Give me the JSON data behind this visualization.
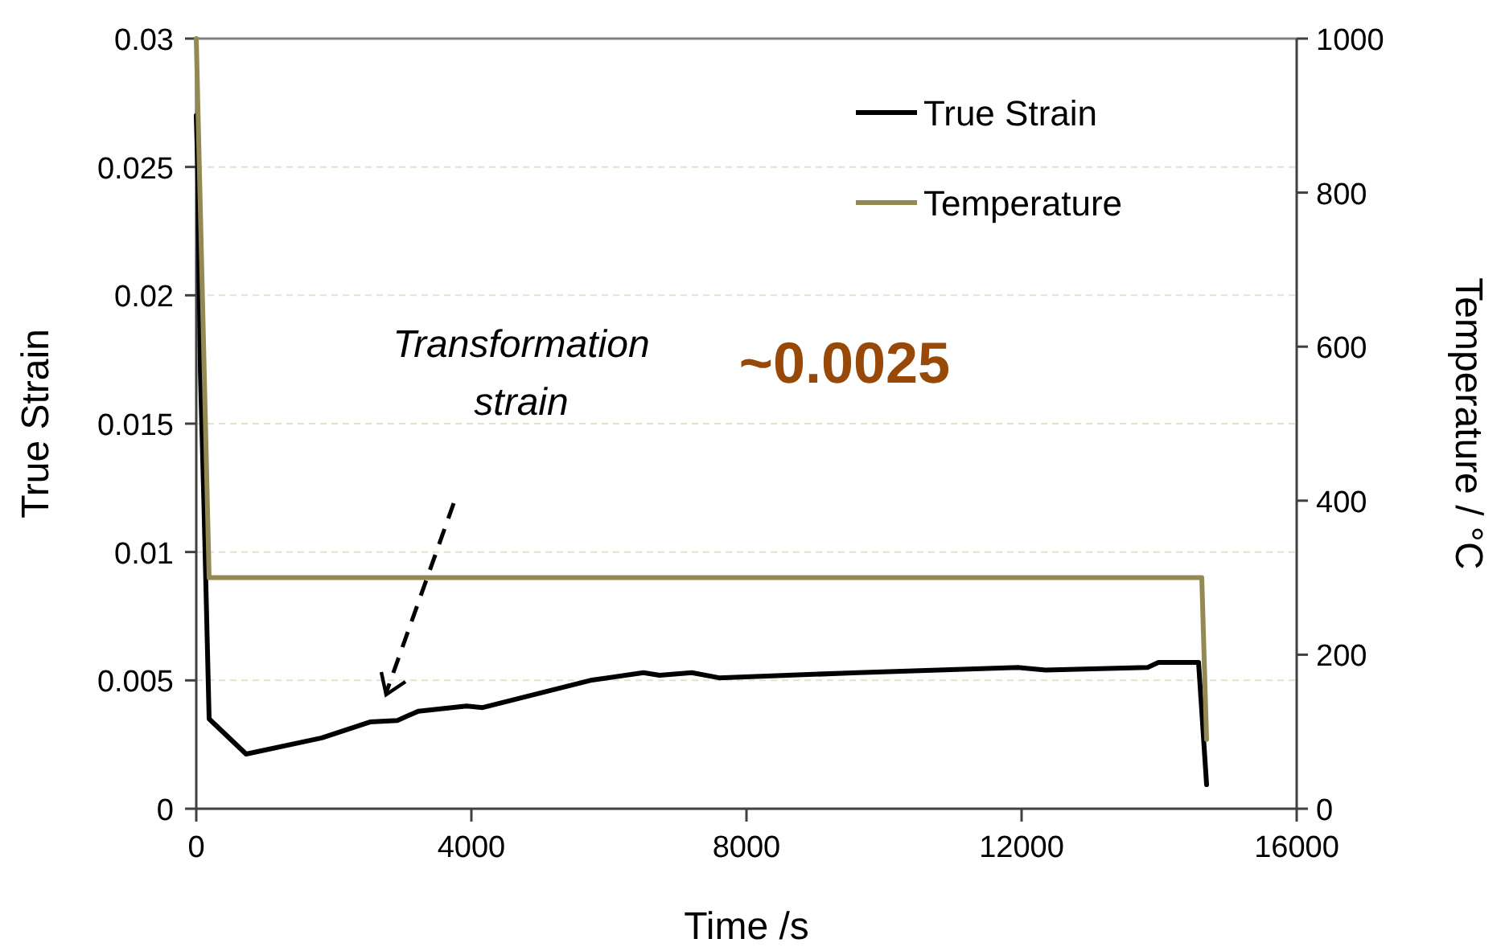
{
  "chart_data": {
    "type": "line",
    "xlabel": "Time /s",
    "ylabel": "True Strain",
    "y2label": "Temperature / °C",
    "xlim": [
      0,
      16000
    ],
    "xticks": [
      0,
      4000,
      8000,
      12000,
      16000
    ],
    "ylim": [
      0,
      0.03
    ],
    "yticks": [
      0,
      0.005,
      0.01,
      0.015,
      0.02,
      0.025,
      0.03
    ],
    "y2lim": [
      0,
      1000
    ],
    "y2ticks": [
      0,
      200,
      400,
      600,
      800,
      1000
    ],
    "grid": "y",
    "legend": "top right",
    "marker": "none",
    "line_style": "solid",
    "series": [
      {
        "name": "True Strain",
        "color": "#000000",
        "x": [
          0,
          20,
          60,
          110,
          187,
          725,
          1825,
          2526,
          2924,
          3228,
          3930,
          4164,
          5731,
          6503,
          6737,
          7205,
          7602,
          9620,
          11960,
          12350,
          13830,
          13990,
          14573,
          14620,
          14690
        ],
        "values": [
          0.027,
          0.025,
          0.017,
          0.012,
          0.0035,
          0.00213,
          0.00276,
          0.00338,
          0.00344,
          0.0038,
          0.004,
          0.00394,
          0.005,
          0.0053,
          0.0052,
          0.0053,
          0.0051,
          0.0053,
          0.0055,
          0.0054,
          0.0055,
          0.0057,
          0.0057,
          0.0038,
          0.00094
        ]
      },
      {
        "name": "Temperature",
        "color": "#938953",
        "axis": "y2",
        "x": [
          0,
          187,
          14620,
          14690
        ],
        "values": [
          1000,
          300,
          300,
          90
        ]
      }
    ],
    "annotations": [
      "Transformation strain",
      "~0.0025"
    ]
  }
}
